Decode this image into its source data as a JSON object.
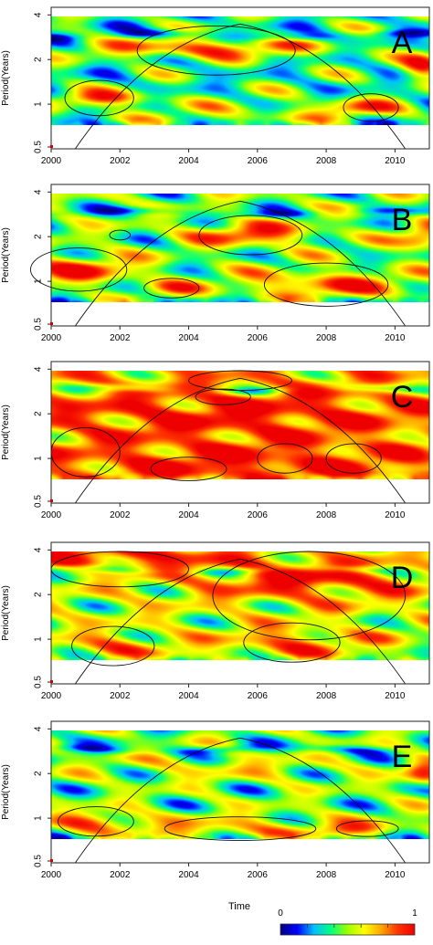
{
  "chart_data": [
    {
      "type": "heatmap",
      "panel_label": "A",
      "ylabel": "Period(Years)",
      "x_ticks": [
        "2000",
        "2002",
        "2004",
        "2006",
        "2008",
        "2010"
      ],
      "y_ticks": [
        "0.5",
        "1",
        "2",
        "4"
      ],
      "xlim": [
        2000,
        2011
      ],
      "ylim_period_log2": [
        0.5,
        4.5
      ],
      "y_scale": "log2",
      "blobs": [
        {
          "x": 2001.5,
          "p": 1.1,
          "sx": 1.3,
          "sy": 0.18,
          "v": 0.85
        },
        {
          "x": 2004.5,
          "p": 2.4,
          "sx": 3.5,
          "sy": 0.22,
          "v": 0.85
        },
        {
          "x": 2005.5,
          "p": 0.85,
          "sx": 4.0,
          "sy": 0.35,
          "v": 0.55
        },
        {
          "x": 2009.0,
          "p": 0.95,
          "sx": 1.2,
          "sy": 0.2,
          "v": 0.75
        },
        {
          "x": 2010.8,
          "p": 1.8,
          "sx": 0.6,
          "sy": 0.3,
          "v": 0.9
        }
      ],
      "contours": [
        {
          "x": 2001.4,
          "p": 1.1,
          "rx": 1.0,
          "ry": 0.18
        },
        {
          "x": 2004.8,
          "p": 2.3,
          "rx": 2.3,
          "ry": 0.25
        },
        {
          "x": 2009.3,
          "p": 0.95,
          "rx": 0.8,
          "ry": 0.14
        }
      ],
      "background_level": 0.38
    },
    {
      "type": "heatmap",
      "panel_label": "B",
      "ylabel": "Period(Years)",
      "x_ticks": [
        "2000",
        "2002",
        "2004",
        "2006",
        "2008",
        "2010"
      ],
      "y_ticks": [
        "0.5",
        "1",
        "2",
        "4"
      ],
      "xlim": [
        2000,
        2011
      ],
      "ylim_period_log2": [
        0.5,
        4.5
      ],
      "y_scale": "log2",
      "blobs": [
        {
          "x": 2000.8,
          "p": 1.2,
          "sx": 1.6,
          "sy": 0.3,
          "v": 0.9
        },
        {
          "x": 2005.8,
          "p": 2.1,
          "sx": 1.8,
          "sy": 0.25,
          "v": 0.9
        },
        {
          "x": 2008.0,
          "p": 0.95,
          "sx": 2.5,
          "sy": 0.3,
          "v": 0.85
        },
        {
          "x": 2003.5,
          "p": 0.9,
          "sx": 1.0,
          "sy": 0.18,
          "v": 0.7
        },
        {
          "x": 2010.8,
          "p": 2.0,
          "sx": 0.7,
          "sy": 0.3,
          "v": 0.85
        }
      ],
      "contours": [
        {
          "x": 2000.8,
          "p": 1.2,
          "rx": 1.4,
          "ry": 0.22
        },
        {
          "x": 2005.8,
          "p": 2.05,
          "rx": 1.5,
          "ry": 0.2
        },
        {
          "x": 2008.0,
          "p": 0.95,
          "rx": 1.8,
          "ry": 0.22
        },
        {
          "x": 2003.5,
          "p": 0.9,
          "rx": 0.8,
          "ry": 0.1
        },
        {
          "x": 2002.0,
          "p": 2.05,
          "rx": 0.3,
          "ry": 0.05
        }
      ],
      "background_level": 0.45
    },
    {
      "type": "heatmap",
      "panel_label": "C",
      "ylabel": "Period(Years)",
      "x_ticks": [
        "2000",
        "2002",
        "2004",
        "2006",
        "2008",
        "2010"
      ],
      "y_ticks": [
        "0.5",
        "1",
        "2",
        "4"
      ],
      "xlim": [
        2000,
        2011
      ],
      "ylim_period_log2": [
        0.5,
        4.5
      ],
      "y_scale": "log2",
      "blobs": [
        {
          "x": 2005.5,
          "p": 2.0,
          "sx": 6.0,
          "sy": 0.6,
          "v": 0.95
        },
        {
          "x": 2005.5,
          "p": 0.9,
          "sx": 6.0,
          "sy": 0.5,
          "v": 0.95
        }
      ],
      "contours": [
        {
          "x": 2001.0,
          "p": 1.1,
          "rx": 1.0,
          "ry": 0.25
        },
        {
          "x": 2004.0,
          "p": 0.85,
          "rx": 1.1,
          "ry": 0.12
        },
        {
          "x": 2006.8,
          "p": 1.0,
          "rx": 0.8,
          "ry": 0.15
        },
        {
          "x": 2008.8,
          "p": 1.0,
          "rx": 0.8,
          "ry": 0.15
        },
        {
          "x": 2005.0,
          "p": 2.6,
          "rx": 0.8,
          "ry": 0.08
        },
        {
          "x": 2005.5,
          "p": 3.8,
          "rx": 1.5,
          "ry": 0.1
        }
      ],
      "background_level": 0.7
    },
    {
      "type": "heatmap",
      "panel_label": "D",
      "ylabel": "Period(Years)",
      "x_ticks": [
        "2000",
        "2002",
        "2004",
        "2006",
        "2008",
        "2010"
      ],
      "y_ticks": [
        "0.5",
        "1",
        "2",
        "4"
      ],
      "xlim": [
        2000,
        2011
      ],
      "ylim_period_log2": [
        0.5,
        4.5
      ],
      "y_scale": "log2",
      "blobs": [
        {
          "x": 2002.0,
          "p": 3.7,
          "sx": 3.0,
          "sy": 0.3,
          "v": 0.95
        },
        {
          "x": 2007.5,
          "p": 2.6,
          "sx": 3.5,
          "sy": 0.5,
          "v": 0.95
        },
        {
          "x": 2007.0,
          "p": 0.95,
          "sx": 1.8,
          "sy": 0.3,
          "v": 0.85
        },
        {
          "x": 2001.8,
          "p": 0.9,
          "sx": 1.4,
          "sy": 0.25,
          "v": 0.8
        }
      ],
      "contours": [
        {
          "x": 2002.0,
          "p": 3.7,
          "rx": 2.0,
          "ry": 0.18
        },
        {
          "x": 2007.5,
          "p": 2.5,
          "rx": 2.8,
          "ry": 0.45
        },
        {
          "x": 2007.0,
          "p": 0.95,
          "rx": 1.4,
          "ry": 0.2
        },
        {
          "x": 2001.8,
          "p": 0.9,
          "rx": 1.2,
          "ry": 0.2
        }
      ],
      "background_level": 0.55
    },
    {
      "type": "heatmap",
      "panel_label": "E",
      "ylabel": "Period(Years)",
      "x_ticks": [
        "2000",
        "2002",
        "2004",
        "2006",
        "2008",
        "2010"
      ],
      "y_ticks": [
        "0.5",
        "1",
        "2",
        "4"
      ],
      "xlim": [
        2000,
        2011
      ],
      "ylim_period_log2": [
        0.5,
        4.5
      ],
      "y_scale": "log2",
      "blobs": [
        {
          "x": 2001.3,
          "p": 0.95,
          "sx": 1.2,
          "sy": 0.22,
          "v": 0.85
        },
        {
          "x": 2005.5,
          "p": 0.85,
          "sx": 3.5,
          "sy": 0.3,
          "v": 0.7
        },
        {
          "x": 2009.0,
          "p": 0.85,
          "sx": 1.3,
          "sy": 0.15,
          "v": 0.7
        },
        {
          "x": 2005.0,
          "p": 2.2,
          "sx": 3.5,
          "sy": 0.3,
          "v": 0.6
        },
        {
          "x": 2010.8,
          "p": 2.0,
          "sx": 0.6,
          "sy": 0.3,
          "v": 0.85
        }
      ],
      "contours": [
        {
          "x": 2001.3,
          "p": 0.95,
          "rx": 1.1,
          "ry": 0.15
        },
        {
          "x": 2005.5,
          "p": 0.85,
          "rx": 2.2,
          "ry": 0.12
        },
        {
          "x": 2009.2,
          "p": 0.85,
          "rx": 0.9,
          "ry": 0.08
        }
      ],
      "background_level": 0.45
    }
  ],
  "common": {
    "xlabel": "Time",
    "coi_peak_year": 2005.5,
    "coi_peak_period": 4,
    "colorbar": {
      "min_label": "0",
      "max_label": "1",
      "colors": [
        "#00007f",
        "#0000ff",
        "#00bfff",
        "#00ff7f",
        "#9fff00",
        "#ffff00",
        "#ffa500",
        "#ff3300",
        "#ee0000"
      ]
    }
  }
}
